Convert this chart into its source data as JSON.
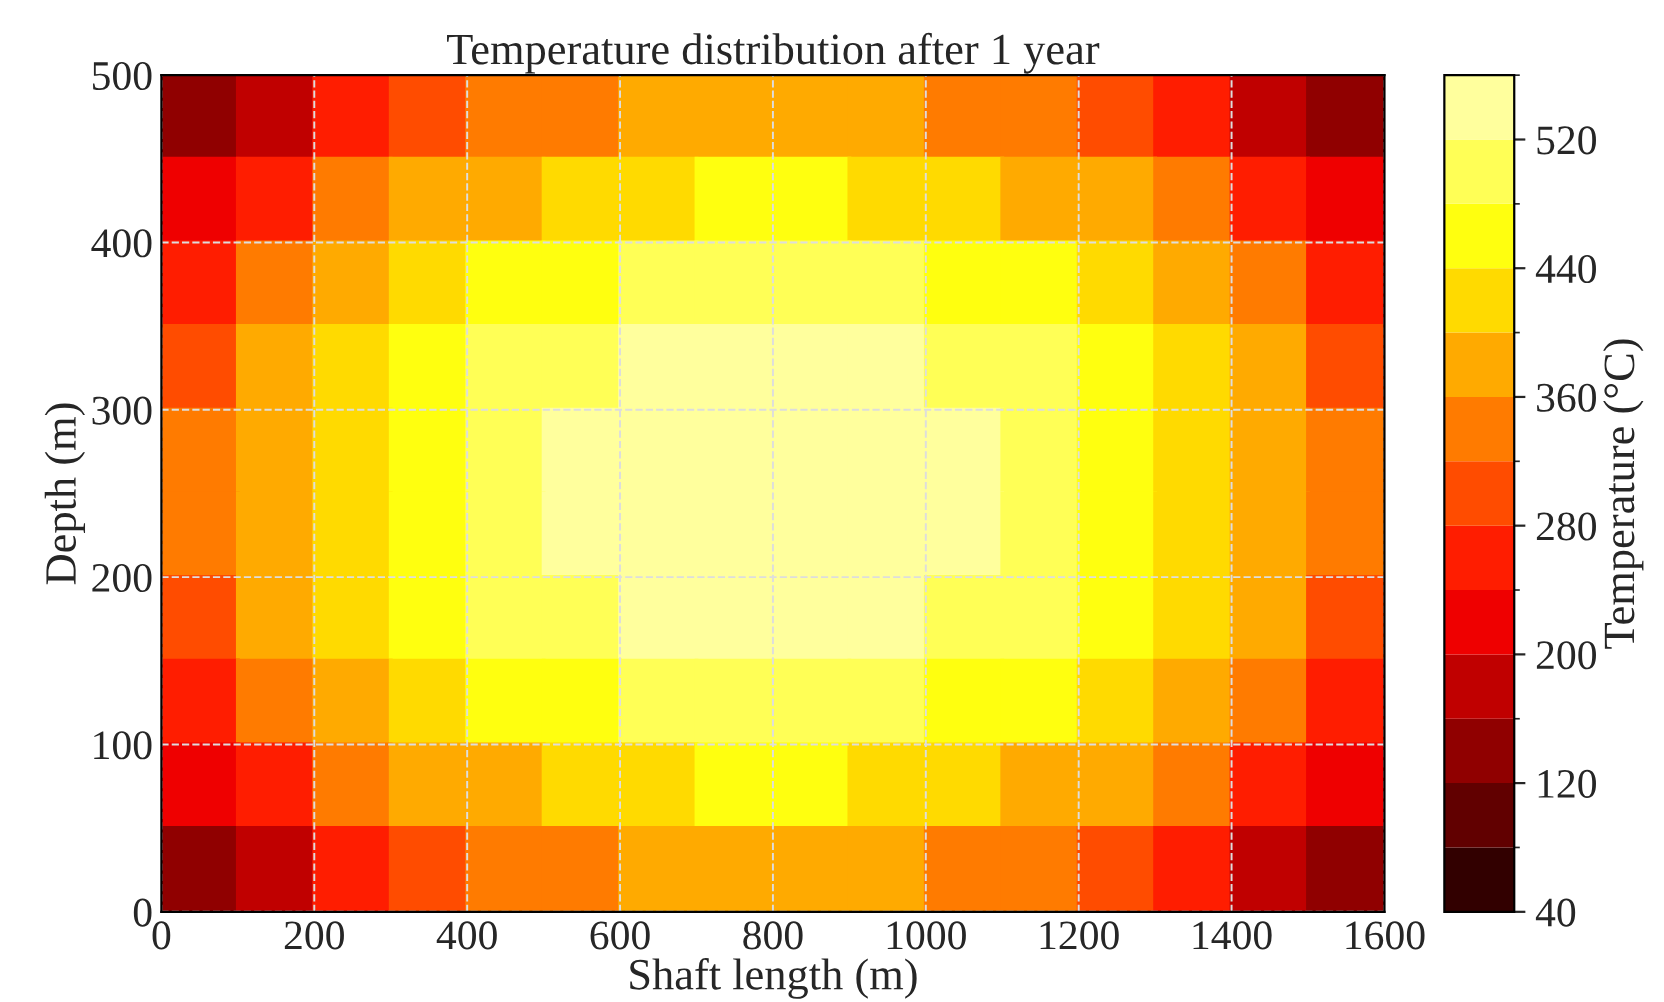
{
  "chart_data": {
    "type": "scatter",
    "title": "Temperature distribution after 1 year",
    "xlabel": "Shaft length (m)",
    "ylabel": "Depth (m)",
    "clabel": "Temperature (°C)",
    "marker": "square",
    "x": [
      50,
      150,
      250,
      350,
      450,
      550,
      650,
      750,
      850,
      950,
      1050,
      1150,
      1250,
      1350,
      1450,
      1550,
      50,
      150,
      250,
      350,
      450,
      550,
      650,
      750,
      850,
      950,
      1050,
      1150,
      1250,
      1350,
      1450,
      1550,
      50,
      150,
      250,
      350,
      450,
      550,
      650,
      750,
      850,
      950,
      1050,
      1150,
      1250,
      1350,
      1450,
      1550,
      50,
      150,
      250,
      350,
      450,
      550,
      650,
      750,
      850,
      950,
      1050,
      1150,
      1250,
      1350,
      1450,
      1550,
      50,
      150,
      250,
      350,
      450,
      550,
      650,
      750,
      850,
      950,
      1050,
      1150,
      1250,
      1350,
      1450,
      1550,
      50,
      150,
      250,
      350,
      450,
      550,
      650,
      750,
      850,
      950,
      1050,
      1150,
      1250,
      1350,
      1450,
      1550,
      50,
      150,
      250,
      350,
      450,
      550,
      650,
      750,
      850,
      950,
      1050,
      1150,
      1250,
      1350,
      1450,
      1550,
      50,
      150,
      250,
      350,
      450,
      550,
      650,
      750,
      850,
      950,
      1050,
      1150,
      1250,
      1350,
      1450,
      1550,
      50,
      150,
      250,
      350,
      450,
      550,
      650,
      750,
      850,
      950,
      1050,
      1150,
      1250,
      1350,
      1450,
      1550,
      50,
      150,
      250,
      350,
      450,
      550,
      650,
      750,
      850,
      950,
      1050,
      1150,
      1250,
      1350,
      1450,
      1550
    ],
    "values": [
      475,
      475,
      475,
      475,
      475,
      475,
      475,
      475,
      475,
      475,
      475,
      475,
      475,
      475,
      475,
      475,
      425,
      425,
      425,
      425,
      425,
      425,
      425,
      425,
      425,
      425,
      425,
      425,
      425,
      425,
      425,
      425,
      375,
      375,
      375,
      375,
      375,
      375,
      375,
      375,
      375,
      375,
      375,
      375,
      375,
      375,
      375,
      375,
      325,
      325,
      325,
      325,
      325,
      325,
      325,
      325,
      325,
      325,
      325,
      325,
      325,
      325,
      325,
      325,
      275,
      275,
      275,
      275,
      275,
      275,
      275,
      275,
      275,
      275,
      275,
      275,
      275,
      275,
      275,
      275,
      225,
      225,
      225,
      225,
      225,
      225,
      225,
      225,
      225,
      225,
      225,
      225,
      225,
      225,
      225,
      225,
      175,
      175,
      175,
      175,
      175,
      175,
      175,
      175,
      175,
      175,
      175,
      175,
      175,
      175,
      175,
      175,
      125,
      125,
      125,
      125,
      125,
      125,
      125,
      125,
      125,
      125,
      125,
      125,
      125,
      125,
      125,
      125,
      75,
      75,
      75,
      75,
      75,
      75,
      75,
      75,
      75,
      75,
      75,
      75,
      75,
      75,
      75,
      75,
      25,
      25,
      25,
      25,
      25,
      25,
      25,
      25,
      25,
      25,
      25,
      25,
      25,
      25,
      25,
      25
    ],
    "cvalues": [
      123,
      183,
      240,
      290,
      322,
      346,
      363,
      370,
      370,
      363,
      346,
      322,
      290,
      240,
      183,
      123,
      202,
      270,
      322,
      363,
      393,
      416,
      432,
      440,
      440,
      432,
      416,
      393,
      363,
      322,
      270,
      202,
      267,
      328,
      376,
      414,
      445,
      469,
      484,
      491,
      491,
      484,
      469,
      445,
      414,
      376,
      328,
      267,
      309,
      365,
      410,
      449,
      481,
      503,
      520,
      525,
      525,
      520,
      503,
      481,
      449,
      410,
      365,
      309,
      326,
      381,
      428,
      466,
      497,
      522,
      534,
      543,
      543,
      534,
      522,
      497,
      466,
      428,
      381,
      326,
      326,
      381,
      428,
      466,
      497,
      522,
      534,
      543,
      543,
      534,
      522,
      497,
      466,
      428,
      381,
      326,
      309,
      365,
      410,
      449,
      481,
      503,
      520,
      525,
      525,
      520,
      503,
      481,
      449,
      410,
      365,
      309,
      267,
      328,
      376,
      414,
      445,
      469,
      484,
      491,
      491,
      484,
      469,
      445,
      414,
      376,
      328,
      267,
      202,
      270,
      322,
      363,
      393,
      416,
      432,
      440,
      440,
      432,
      416,
      393,
      363,
      322,
      270,
      202,
      123,
      183,
      240,
      290,
      322,
      346,
      363,
      370,
      370,
      363,
      346,
      322,
      290,
      240,
      183,
      123
    ],
    "clim": [
      40,
      560
    ],
    "cticks": [
      40,
      120,
      200,
      280,
      360,
      440,
      520
    ],
    "xlim": [
      0,
      1600
    ],
    "xticks": [
      0,
      200,
      400,
      600,
      800,
      1000,
      1200,
      1400,
      1600
    ],
    "ylim": [
      0,
      500
    ],
    "yticks": [
      0,
      100,
      200,
      300,
      400,
      500
    ],
    "grid": true
  }
}
